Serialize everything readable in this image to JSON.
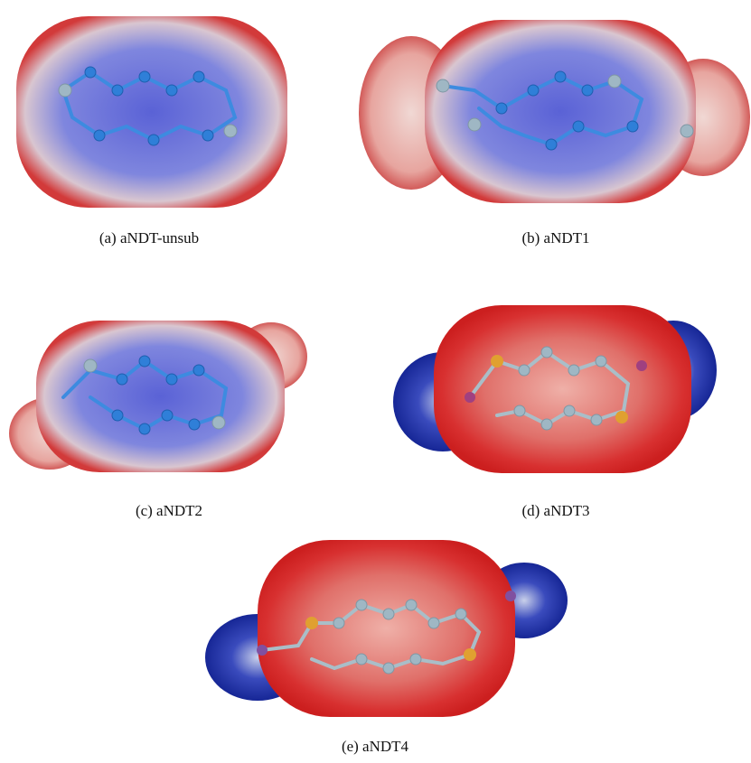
{
  "panels": [
    {
      "caption": "(a) aNDT-unsub"
    },
    {
      "caption": "(b) aNDT1"
    },
    {
      "caption": "(c) aNDT2"
    },
    {
      "caption": "(d) aNDT3"
    },
    {
      "caption": "(e) aNDT4"
    }
  ]
}
